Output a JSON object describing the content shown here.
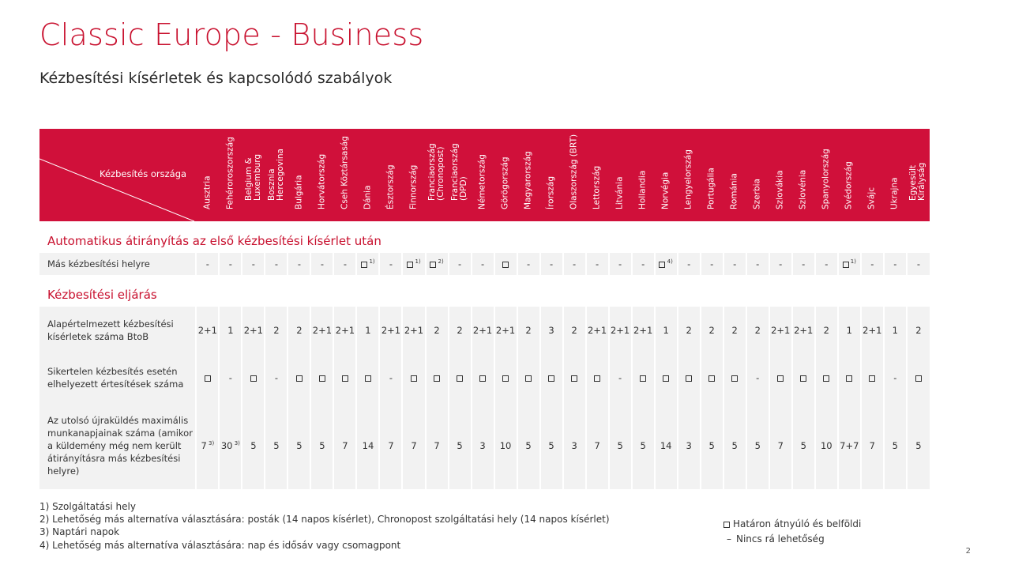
{
  "title": "Classic Europe - Business",
  "subtitle": "Kézbesítési kísérletek és kapcsolódó szabályok",
  "header_label": "Kézbesítés országa",
  "countries": [
    "Ausztria",
    "Fehéroroszország",
    "Belgium &\nLuxemburg",
    "Bosznia\nHercegovina",
    "Bulgária",
    "Horvátország",
    "Cseh Köztársaság",
    "Dánia",
    "Észtország",
    "Finnország",
    "Franciaország\n(Chronopost)",
    "Franciaország\n(DPD)",
    "Németország",
    "Görögország",
    "Magyarország",
    "Írország",
    "Olaszország (BRT)",
    "Lettország",
    "Litvánia",
    "Hollandia",
    "Norvégia",
    "Lengyelország",
    "Portugália",
    "Románia",
    "Szerbia",
    "Szlovákia",
    "Szlovénia",
    "Spanyolország",
    "Svédország",
    "Svájc",
    "Ukrajna",
    "Egyesült\nKirályság"
  ],
  "section1": "Automatikus átirányítás az első kézbesítési kísérlet után",
  "section2": "Kézbesítési eljárás",
  "rows": [
    {
      "label": "Más kézbesítési helyre",
      "cls": "r1",
      "values": [
        "-",
        "-",
        "-",
        "-",
        "-",
        "-",
        "-",
        "□|1)",
        "-",
        "□|1)",
        "□|2)",
        "-",
        "-",
        "□",
        "-",
        "-",
        "-",
        "-",
        "-",
        "-",
        "□|4)",
        "-",
        "-",
        "-",
        "-",
        "-",
        "-",
        "-",
        "□|1)",
        "-",
        "-",
        "-"
      ]
    },
    {
      "label": "Alapértelmezett kézbesítési kísérletek száma BtoB",
      "cls": "r2",
      "values": [
        "2+1",
        "1",
        "2+1",
        "2",
        "2",
        "2+1",
        "2+1",
        "1",
        "2+1",
        "2+1",
        "2",
        "2",
        "2+1",
        "2+1",
        "2",
        "3",
        "2",
        "2+1",
        "2+1",
        "2+1",
        "1",
        "2",
        "2",
        "2",
        "2",
        "2+1",
        "2+1",
        "2",
        "1",
        "2+1",
        "1",
        "2"
      ]
    },
    {
      "label": "Sikertelen kézbesítés esetén elhelyezett értesítések száma",
      "cls": "r3",
      "values": [
        "□",
        "-",
        "□",
        "-",
        "□",
        "□",
        "□",
        "□",
        "-",
        "□",
        "□",
        "□",
        "□",
        "□",
        "□",
        "□",
        "□",
        "□",
        "-",
        "□",
        "□",
        "□",
        "□",
        "□",
        "-",
        "□",
        "□",
        "□",
        "□",
        "□",
        "-",
        "□"
      ]
    },
    {
      "label": "Az utolsó újraküldés maximális munkanapjainak száma (amikor a küldemény még nem került átirányításra más kézbesítési helyre)",
      "cls": "r4",
      "values": [
        "7|3)",
        "30|3)",
        "5",
        "5",
        "5",
        "5",
        "7",
        "14",
        "7",
        "7",
        "7",
        "5",
        "3",
        "10",
        "5",
        "5",
        "3",
        "7",
        "5",
        "5",
        "14",
        "3",
        "5",
        "5",
        "5",
        "7",
        "5",
        "10",
        "7+7",
        "7",
        "5",
        "5"
      ]
    }
  ],
  "notes": [
    "1) Szolgáltatási hely",
    "2) Lehetőség más alternatíva választására: posták (14 napos kísérlet), Chronopost szolgáltatási hely (14 napos kísérlet)",
    "3) Naptári napok",
    "4) Lehetőség más alternatíva választására: nap és idősáv vagy csomagpont"
  ],
  "legend": {
    "square": "Határon átnyúló és belföldi",
    "dash": "Nincs rá lehetőség"
  },
  "page_number": "2",
  "colors": {
    "accent": "#c8102e",
    "header_bg": "#d0103a",
    "row_bg": "#f2f2f2"
  }
}
